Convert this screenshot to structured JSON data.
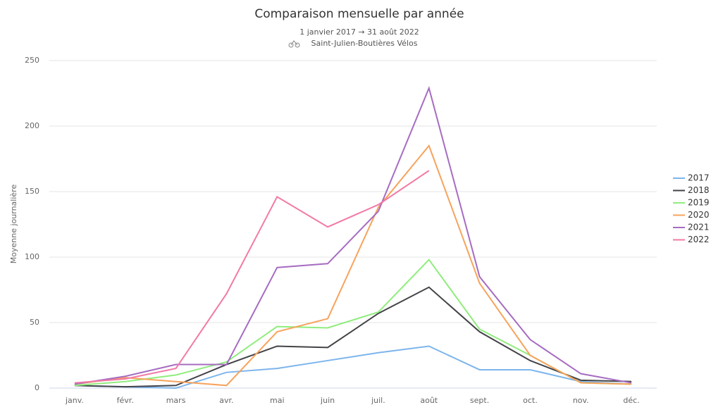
{
  "chart_data": {
    "type": "line",
    "title": "Comparaison mensuelle par année",
    "subtitle": "1 janvier 2017 → 31 août 2022",
    "subtitle2": "Saint-Julien-Boutières Vélos",
    "y_label": "Moyenne journalière",
    "categories": [
      "janv.",
      "févr.",
      "mars",
      "avr.",
      "mai",
      "juin",
      "juil.",
      "août",
      "sept.",
      "oct.",
      "nov.",
      "déc."
    ],
    "ylim": [
      0,
      250
    ],
    "yticks": [
      0,
      50,
      100,
      150,
      200,
      250
    ],
    "grid": true,
    "legend": "right",
    "series": [
      {
        "name": "2017",
        "color": "#7cb5ec",
        "values": [
          2,
          1,
          0,
          12,
          15,
          21,
          27,
          32,
          14,
          14,
          5,
          3
        ]
      },
      {
        "name": "2018",
        "color": "#434348",
        "values": [
          2,
          1,
          2,
          18,
          32,
          31,
          57,
          77,
          43,
          21,
          6,
          5
        ]
      },
      {
        "name": "2019",
        "color": "#90ed7d",
        "values": [
          2,
          5,
          10,
          20,
          47,
          46,
          58,
          98,
          45,
          25,
          4,
          3
        ]
      },
      {
        "name": "2020",
        "color": "#f7a35c",
        "values": [
          3,
          8,
          5,
          2,
          43,
          53,
          138,
          185,
          80,
          25,
          4,
          3
        ]
      },
      {
        "name": "2021",
        "color": "#a66cc2",
        "values": [
          3,
          9,
          18,
          18,
          92,
          95,
          135,
          229,
          85,
          37,
          11,
          4
        ]
      },
      {
        "name": "2022",
        "color": "#f27aa6",
        "values": [
          4,
          7,
          15,
          72,
          146,
          123,
          140,
          166,
          null,
          null,
          null,
          null
        ]
      }
    ]
  }
}
